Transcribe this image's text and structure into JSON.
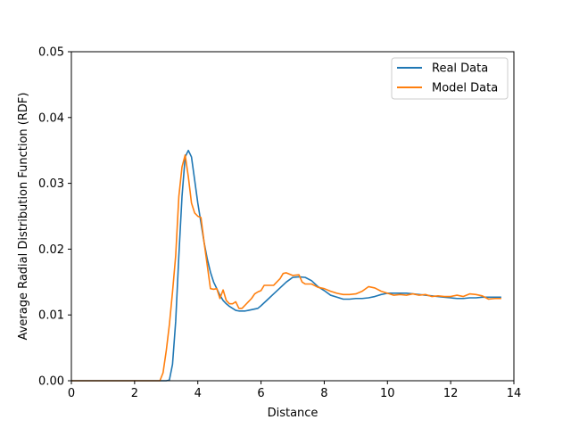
{
  "chart_data": {
    "type": "line",
    "title": "",
    "xlabel": "Distance",
    "ylabel": "Average Radial Distribution Function (RDF)",
    "xlim": [
      0,
      14
    ],
    "ylim": [
      0,
      0.05
    ],
    "xticks": [
      0,
      2,
      4,
      6,
      8,
      10,
      12,
      14
    ],
    "xtick_labels": [
      "0",
      "2",
      "4",
      "6",
      "8",
      "10",
      "12",
      "14"
    ],
    "yticks": [
      0,
      0.01,
      0.02,
      0.03,
      0.04,
      0.05
    ],
    "ytick_labels": [
      "0.00",
      "0.01",
      "0.02",
      "0.03",
      "0.04",
      "0.05"
    ],
    "grid": false,
    "legend": "upper-right",
    "series": [
      {
        "name": "Real Data",
        "color": "#1f77b4",
        "x": [
          0,
          2.9,
          3.0,
          3.1,
          3.2,
          3.3,
          3.4,
          3.5,
          3.6,
          3.7,
          3.8,
          3.9,
          4.0,
          4.1,
          4.2,
          4.3,
          4.4,
          4.5,
          4.6,
          4.7,
          4.8,
          4.9,
          5.0,
          5.1,
          5.2,
          5.3,
          5.4,
          5.5,
          5.6,
          5.7,
          5.8,
          5.9,
          6.0,
          6.2,
          6.4,
          6.6,
          6.8,
          7.0,
          7.2,
          7.4,
          7.6,
          7.8,
          8.0,
          8.2,
          8.4,
          8.6,
          8.8,
          9.0,
          9.2,
          9.4,
          9.6,
          9.8,
          10.0,
          10.2,
          10.4,
          10.6,
          10.8,
          11.0,
          11.2,
          11.4,
          11.6,
          11.8,
          12.0,
          12.2,
          12.4,
          12.6,
          12.8,
          13.0,
          13.2,
          13.4,
          13.6
        ],
        "values": [
          0,
          0,
          0,
          0.0001,
          0.0025,
          0.009,
          0.019,
          0.028,
          0.034,
          0.035,
          0.034,
          0.0305,
          0.027,
          0.024,
          0.021,
          0.0185,
          0.0165,
          0.015,
          0.014,
          0.013,
          0.0122,
          0.0117,
          0.0113,
          0.011,
          0.0107,
          0.0106,
          0.0106,
          0.0106,
          0.0107,
          0.0108,
          0.0109,
          0.011,
          0.0114,
          0.0123,
          0.0132,
          0.0141,
          0.015,
          0.0157,
          0.0158,
          0.0157,
          0.0152,
          0.0143,
          0.0137,
          0.013,
          0.0127,
          0.0124,
          0.0124,
          0.0125,
          0.0125,
          0.0126,
          0.0128,
          0.0131,
          0.0133,
          0.0133,
          0.0133,
          0.0133,
          0.0132,
          0.0131,
          0.013,
          0.0129,
          0.0128,
          0.0127,
          0.0126,
          0.0125,
          0.0125,
          0.0126,
          0.0126,
          0.0127,
          0.0127,
          0.0127,
          0.0127
        ]
      },
      {
        "name": "Model Data",
        "color": "#ff7f0e",
        "x": [
          0,
          2.8,
          2.9,
          3.0,
          3.1,
          3.2,
          3.3,
          3.4,
          3.5,
          3.6,
          3.7,
          3.8,
          3.9,
          4.0,
          4.1,
          4.2,
          4.3,
          4.4,
          4.5,
          4.6,
          4.7,
          4.8,
          4.9,
          5.0,
          5.1,
          5.2,
          5.3,
          5.4,
          5.5,
          5.6,
          5.7,
          5.8,
          5.9,
          6.0,
          6.1,
          6.2,
          6.4,
          6.6,
          6.7,
          6.8,
          7.0,
          7.2,
          7.3,
          7.4,
          7.6,
          7.8,
          8.0,
          8.2,
          8.4,
          8.6,
          8.8,
          9.0,
          9.2,
          9.4,
          9.6,
          9.8,
          10.0,
          10.2,
          10.4,
          10.6,
          10.8,
          11.0,
          11.2,
          11.4,
          11.6,
          11.8,
          12.0,
          12.2,
          12.4,
          12.6,
          12.8,
          13.0,
          13.2,
          13.4,
          13.6
        ],
        "values": [
          0,
          0,
          0.0012,
          0.0045,
          0.0085,
          0.0135,
          0.019,
          0.028,
          0.0325,
          0.0343,
          0.031,
          0.027,
          0.0255,
          0.025,
          0.0248,
          0.021,
          0.0175,
          0.014,
          0.0139,
          0.014,
          0.0125,
          0.0138,
          0.0122,
          0.0117,
          0.0117,
          0.012,
          0.011,
          0.011,
          0.0115,
          0.012,
          0.0125,
          0.0132,
          0.0135,
          0.0137,
          0.0145,
          0.0145,
          0.0145,
          0.0155,
          0.0163,
          0.0164,
          0.016,
          0.0161,
          0.015,
          0.0147,
          0.0147,
          0.0142,
          0.014,
          0.0136,
          0.0133,
          0.0131,
          0.0131,
          0.0132,
          0.0136,
          0.0143,
          0.0141,
          0.0136,
          0.0133,
          0.013,
          0.0131,
          0.013,
          0.0132,
          0.013,
          0.0131,
          0.0128,
          0.0129,
          0.0128,
          0.0128,
          0.013,
          0.0128,
          0.0132,
          0.0131,
          0.0129,
          0.0124,
          0.0125,
          0.0125
        ]
      }
    ]
  }
}
